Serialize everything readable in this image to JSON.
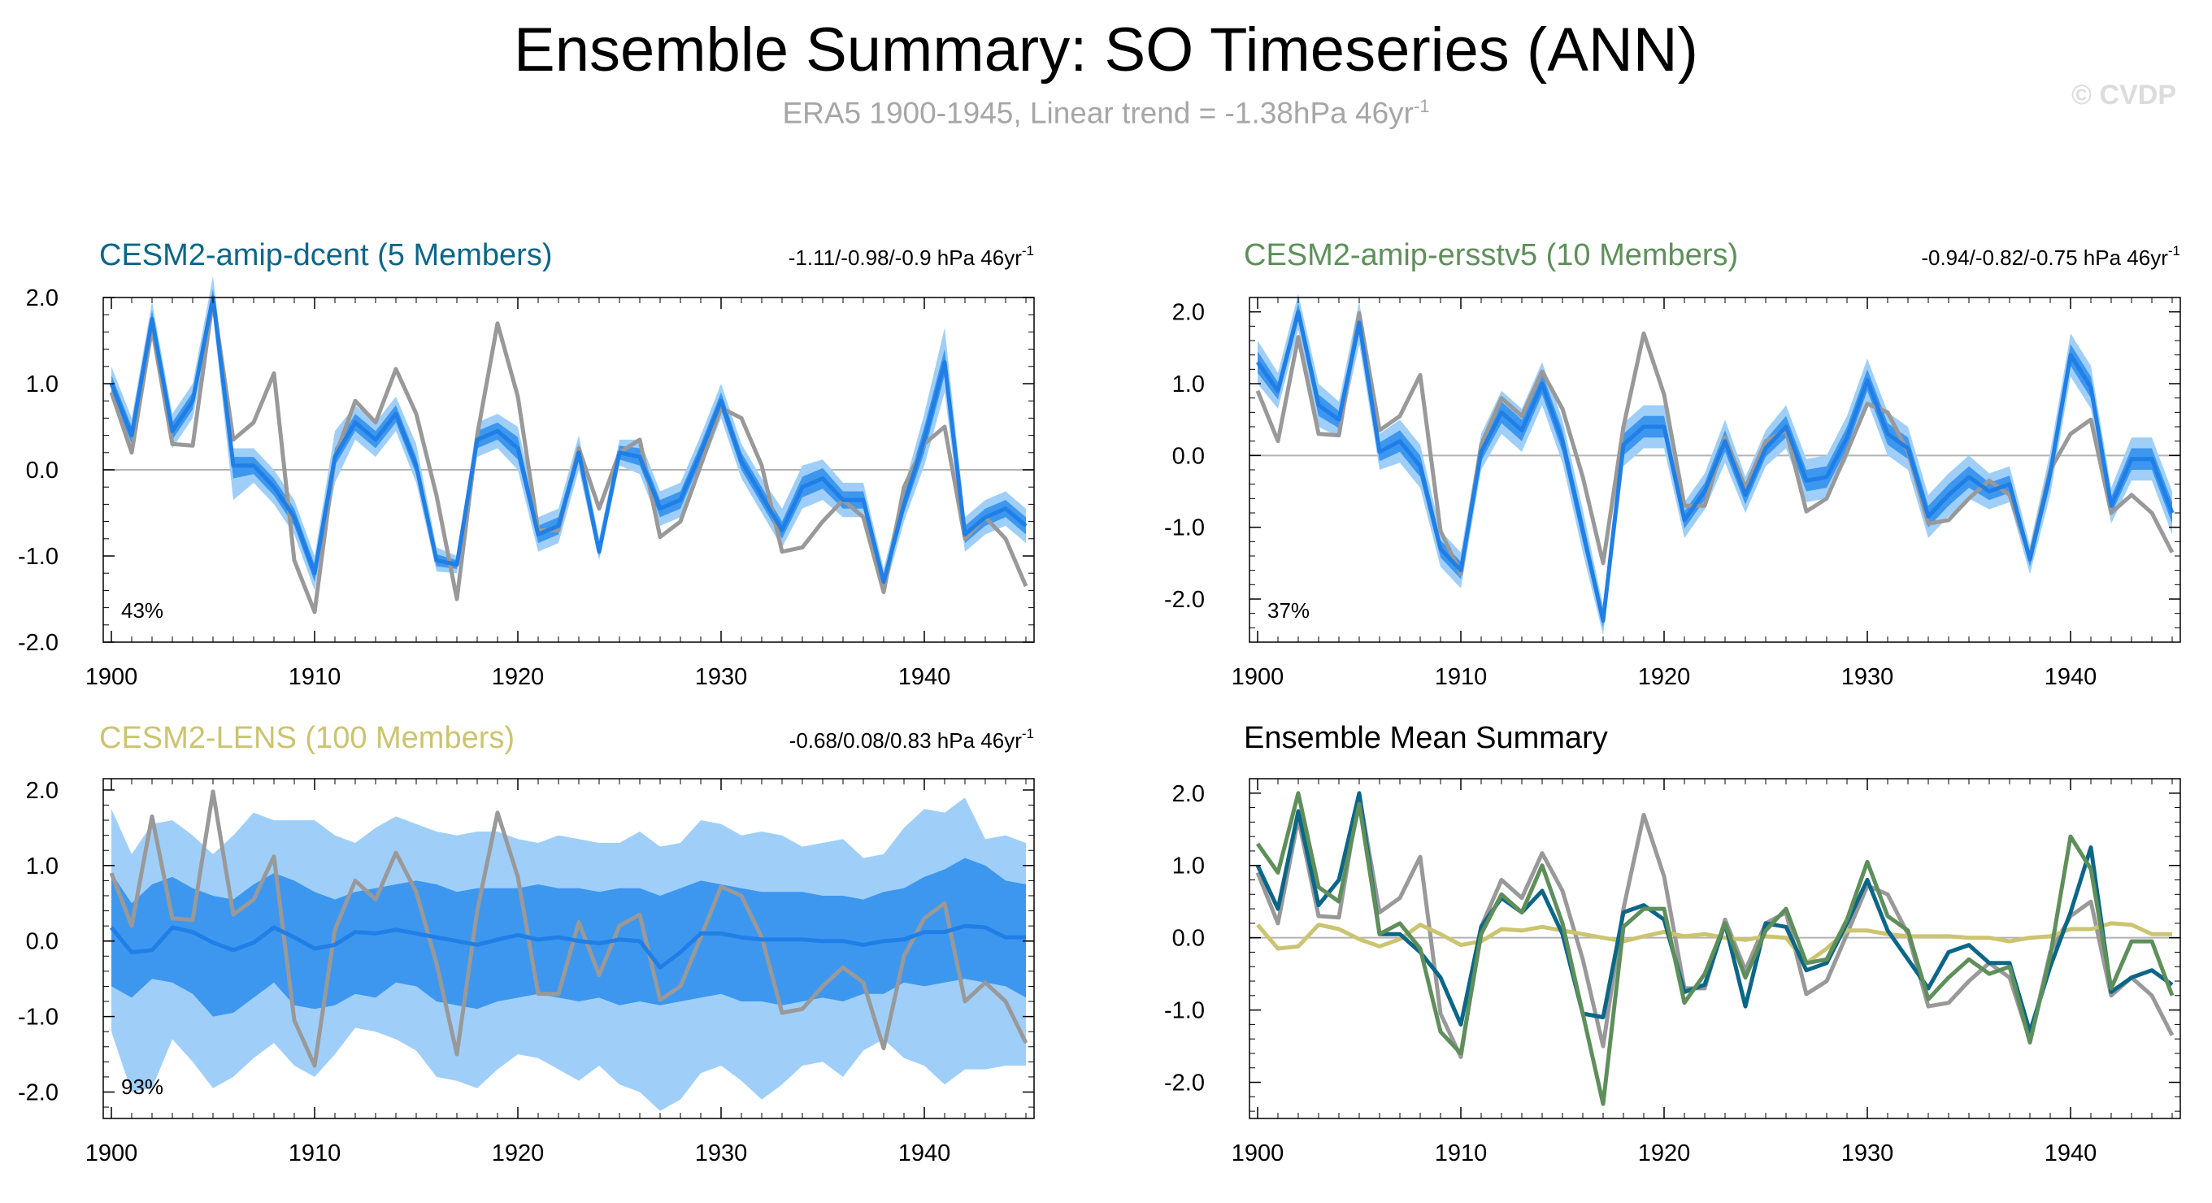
{
  "title": "Ensemble Summary: SO Timeseries (ANN)",
  "subtitle": "ERA5 1900-1945, Linear trend = -1.38hPa 46yr",
  "subtitle_sup": "-1",
  "watermark": "© CVDP",
  "colors": {
    "obs": "#999999",
    "band_outer": "#9fcff9",
    "band_inner": "#3d97ef",
    "ens_line": "#1f7fe6",
    "dcent": "#0b6688",
    "ersstv5": "#5e8f5a",
    "lens": "#cbc470",
    "zero": "#b3b3b3"
  },
  "years": [
    1900,
    1901,
    1902,
    1903,
    1904,
    1905,
    1906,
    1907,
    1908,
    1909,
    1910,
    1911,
    1912,
    1913,
    1914,
    1915,
    1916,
    1917,
    1918,
    1919,
    1920,
    1921,
    1922,
    1923,
    1924,
    1925,
    1926,
    1927,
    1928,
    1929,
    1930,
    1931,
    1932,
    1933,
    1934,
    1935,
    1936,
    1937,
    1938,
    1939,
    1940,
    1941,
    1942,
    1943,
    1944,
    1945
  ],
  "obs": [
    0.9,
    0.2,
    1.65,
    0.3,
    0.28,
    1.98,
    0.35,
    0.55,
    1.12,
    -1.05,
    -1.65,
    0.15,
    0.8,
    0.55,
    1.17,
    0.65,
    -0.3,
    -1.5,
    0.4,
    1.7,
    0.85,
    -0.7,
    -0.7,
    0.25,
    -0.45,
    0.2,
    0.35,
    -0.78,
    -0.6,
    0.05,
    0.72,
    0.6,
    0.05,
    -0.95,
    -0.9,
    -0.6,
    -0.35,
    -0.55,
    -1.42,
    -0.2,
    0.3,
    0.5,
    -0.8,
    -0.55,
    -0.8,
    -1.35
  ],
  "chart_data": [
    {
      "type": "line",
      "panel": "CESM2-amip-dcent",
      "title": "CESM2-amip-dcent (5 Members)",
      "trend_label": "-1.11/-0.98/-0.9 hPa 46yr",
      "percent_label": "43%",
      "ylim": [
        -2.0,
        2.0
      ],
      "y_ticks": [
        "2.0",
        "1.0",
        "0.0",
        "-1.0",
        "-2.0"
      ],
      "x_ticks": [
        "1900",
        "1910",
        "1920",
        "1930",
        "1940"
      ],
      "ens_mean": [
        1.0,
        0.4,
        1.75,
        0.45,
        0.8,
        2.0,
        0.05,
        0.05,
        -0.2,
        -0.55,
        -1.2,
        0.15,
        0.55,
        0.35,
        0.65,
        0.05,
        -1.05,
        -1.1,
        0.35,
        0.45,
        0.25,
        -0.75,
        -0.65,
        0.2,
        -0.95,
        0.2,
        0.15,
        -0.45,
        -0.35,
        0.2,
        0.8,
        0.1,
        -0.3,
        -0.7,
        -0.2,
        -0.1,
        -0.35,
        -0.35,
        -1.3,
        -0.4,
        0.35,
        1.25,
        -0.75,
        -0.55,
        -0.45,
        -0.65
      ],
      "band_inner_lo": [
        0.9,
        0.3,
        1.65,
        0.35,
        0.7,
        1.9,
        -0.1,
        -0.05,
        -0.3,
        -0.65,
        -1.3,
        0.05,
        0.45,
        0.25,
        0.55,
        -0.05,
        -1.12,
        -1.15,
        0.25,
        0.35,
        0.12,
        -0.85,
        -0.75,
        0.1,
        -1.0,
        0.12,
        0.05,
        -0.55,
        -0.45,
        0.1,
        0.7,
        0.0,
        -0.4,
        -0.8,
        -0.32,
        -0.22,
        -0.45,
        -0.45,
        -1.38,
        -0.5,
        0.2,
        1.1,
        -0.85,
        -0.65,
        -0.55,
        -0.75
      ],
      "band_inner_hi": [
        1.1,
        0.5,
        1.85,
        0.55,
        0.9,
        2.1,
        0.15,
        0.15,
        -0.1,
        -0.45,
        -1.1,
        0.25,
        0.65,
        0.45,
        0.75,
        0.15,
        -0.98,
        -1.05,
        0.45,
        0.55,
        0.38,
        -0.65,
        -0.55,
        0.3,
        -0.9,
        0.28,
        0.25,
        -0.35,
        -0.25,
        0.3,
        0.9,
        0.2,
        -0.2,
        -0.6,
        -0.08,
        0.02,
        -0.25,
        -0.25,
        -1.22,
        -0.3,
        0.5,
        1.4,
        -0.65,
        -0.45,
        -0.35,
        -0.55
      ],
      "band_outer_lo": [
        0.85,
        0.2,
        1.55,
        0.25,
        0.6,
        1.8,
        -0.35,
        -0.15,
        -0.4,
        -0.75,
        -1.4,
        -0.15,
        0.35,
        0.15,
        0.45,
        -0.15,
        -1.18,
        -1.2,
        0.15,
        0.25,
        0.0,
        -0.95,
        -0.85,
        0.0,
        -1.05,
        0.05,
        -0.05,
        -0.65,
        -0.55,
        0.0,
        0.6,
        -0.1,
        -0.5,
        -0.9,
        -0.45,
        -0.35,
        -0.55,
        -0.55,
        -1.45,
        -0.6,
        0.05,
        0.9,
        -0.95,
        -0.75,
        -0.65,
        -0.85
      ],
      "band_outer_hi": [
        1.2,
        0.6,
        1.95,
        0.65,
        1.0,
        2.25,
        0.25,
        0.25,
        0.0,
        -0.35,
        -1.0,
        0.45,
        0.75,
        0.55,
        0.85,
        0.3,
        -0.9,
        -1.0,
        0.55,
        0.65,
        0.5,
        -0.55,
        -0.45,
        0.4,
        -0.8,
        0.35,
        0.35,
        -0.25,
        -0.15,
        0.4,
        1.0,
        0.3,
        -0.1,
        -0.45,
        0.05,
        0.12,
        -0.15,
        -0.15,
        -1.15,
        -0.2,
        0.65,
        1.65,
        -0.55,
        -0.35,
        -0.25,
        -0.45
      ]
    },
    {
      "type": "line",
      "panel": "CESM2-amip-ersstv5",
      "title": "CESM2-amip-ersstv5 (10 Members)",
      "trend_label": "-0.94/-0.82/-0.75 hPa 46yr",
      "percent_label": "37%",
      "ylim": [
        -2.6,
        2.2
      ],
      "y_ticks": [
        "2.0",
        "1.0",
        "0.0",
        "-1.0",
        "-2.0"
      ],
      "x_ticks": [
        "1900",
        "1910",
        "1920",
        "1930",
        "1940"
      ],
      "ens_mean": [
        1.3,
        0.9,
        2.0,
        0.7,
        0.5,
        1.85,
        0.05,
        0.2,
        -0.15,
        -1.3,
        -1.6,
        0.05,
        0.6,
        0.35,
        1.0,
        0.2,
        -1.05,
        -2.3,
        0.15,
        0.4,
        0.4,
        -0.9,
        -0.5,
        0.2,
        -0.55,
        0.1,
        0.4,
        -0.35,
        -0.3,
        0.25,
        1.05,
        0.3,
        0.1,
        -0.85,
        -0.55,
        -0.3,
        -0.5,
        -0.4,
        -1.45,
        -0.25,
        1.4,
        0.95,
        -0.7,
        -0.05,
        -0.05,
        -0.8
      ],
      "band_inner_lo": [
        1.15,
        0.78,
        1.88,
        0.55,
        0.38,
        1.7,
        -0.08,
        0.05,
        -0.3,
        -1.42,
        -1.72,
        -0.08,
        0.45,
        0.2,
        0.85,
        0.05,
        -1.2,
        -2.4,
        0.0,
        0.25,
        0.25,
        -1.02,
        -0.62,
        0.05,
        -0.68,
        -0.02,
        0.25,
        -0.5,
        -0.45,
        0.1,
        0.9,
        0.15,
        -0.05,
        -1.0,
        -0.7,
        -0.45,
        -0.62,
        -0.52,
        -1.55,
        -0.4,
        1.25,
        0.8,
        -0.82,
        -0.2,
        -0.2,
        -0.95
      ],
      "band_inner_hi": [
        1.45,
        1.02,
        2.12,
        0.85,
        0.62,
        2.0,
        0.18,
        0.35,
        0.0,
        -1.18,
        -1.48,
        0.18,
        0.75,
        0.5,
        1.15,
        0.35,
        -0.9,
        -2.2,
        0.3,
        0.55,
        0.55,
        -0.78,
        -0.38,
        0.35,
        -0.42,
        0.22,
        0.55,
        -0.2,
        -0.15,
        0.4,
        1.2,
        0.45,
        0.25,
        -0.7,
        -0.4,
        -0.15,
        -0.38,
        -0.28,
        -1.35,
        -0.1,
        1.55,
        1.1,
        -0.58,
        0.1,
        0.1,
        -0.65
      ],
      "band_outer_lo": [
        1.0,
        0.65,
        1.75,
        0.4,
        0.25,
        1.55,
        -0.2,
        -0.1,
        -0.45,
        -1.55,
        -1.85,
        -0.2,
        0.3,
        0.05,
        0.7,
        -0.1,
        -1.35,
        -2.5,
        -0.15,
        0.1,
        0.1,
        -1.15,
        -0.75,
        -0.1,
        -0.8,
        -0.15,
        0.1,
        -0.65,
        -0.6,
        -0.05,
        0.75,
        0.0,
        -0.2,
        -1.15,
        -0.85,
        -0.6,
        -0.75,
        -0.65,
        -1.65,
        -0.55,
        1.1,
        0.65,
        -0.95,
        -0.35,
        -0.35,
        -1.1
      ],
      "band_outer_hi": [
        1.6,
        1.15,
        2.25,
        1.0,
        0.75,
        2.15,
        0.3,
        0.5,
        0.15,
        -1.05,
        -1.35,
        0.3,
        0.9,
        0.65,
        1.3,
        0.5,
        -0.75,
        -2.1,
        0.45,
        0.7,
        0.7,
        -0.65,
        -0.25,
        0.5,
        -0.3,
        0.35,
        0.7,
        -0.05,
        0.0,
        0.55,
        1.35,
        0.6,
        0.4,
        -0.55,
        -0.25,
        0.0,
        -0.25,
        -0.15,
        -1.25,
        0.05,
        1.7,
        1.25,
        -0.45,
        0.25,
        0.25,
        -0.5
      ]
    },
    {
      "type": "area",
      "panel": "CESM2-LENS",
      "title": "CESM2-LENS (100 Members)",
      "trend_label": "-0.68/0.08/0.83 hPa 46yr",
      "percent_label": "93%",
      "ylim": [
        -2.35,
        2.15
      ],
      "y_ticks": [
        "2.0",
        "1.0",
        "0.0",
        "-1.0",
        "-2.0"
      ],
      "x_ticks": [
        "1900",
        "1910",
        "1920",
        "1930",
        "1940"
      ],
      "ens_mean": [
        0.18,
        -0.15,
        -0.12,
        0.18,
        0.12,
        -0.02,
        -0.12,
        -0.02,
        0.18,
        0.05,
        -0.1,
        -0.05,
        0.12,
        0.1,
        0.15,
        0.1,
        0.05,
        0.0,
        -0.05,
        0.02,
        0.08,
        0.02,
        0.05,
        0.0,
        -0.03,
        0.02,
        0.0,
        -0.35,
        -0.15,
        0.1,
        0.1,
        0.05,
        0.02,
        0.02,
        0.02,
        0.0,
        0.0,
        -0.05,
        0.0,
        0.02,
        0.12,
        0.12,
        0.2,
        0.18,
        0.05,
        0.05
      ],
      "band_inner_lo": [
        -0.6,
        -0.75,
        -0.5,
        -0.55,
        -0.7,
        -1.0,
        -0.95,
        -0.75,
        -0.55,
        -0.85,
        -0.9,
        -0.85,
        -0.7,
        -0.75,
        -0.55,
        -0.6,
        -0.8,
        -0.85,
        -0.9,
        -0.8,
        -0.75,
        -0.7,
        -0.75,
        -0.8,
        -0.75,
        -0.85,
        -0.8,
        -0.85,
        -0.8,
        -0.75,
        -0.7,
        -0.8,
        -0.8,
        -0.85,
        -0.8,
        -0.75,
        -0.8,
        -0.7,
        -0.7,
        -0.55,
        -0.6,
        -0.55,
        -0.5,
        -0.55,
        -0.6,
        -0.75
      ],
      "band_inner_hi": [
        0.9,
        0.5,
        0.75,
        0.85,
        0.7,
        0.6,
        0.55,
        0.75,
        0.9,
        0.8,
        0.65,
        0.55,
        0.65,
        0.7,
        0.75,
        0.8,
        0.75,
        0.65,
        0.7,
        0.7,
        0.7,
        0.75,
        0.7,
        0.7,
        0.65,
        0.7,
        0.7,
        0.6,
        0.7,
        0.8,
        0.75,
        0.7,
        0.65,
        0.65,
        0.65,
        0.6,
        0.6,
        0.55,
        0.65,
        0.7,
        0.85,
        0.95,
        1.1,
        1.0,
        0.8,
        0.75
      ],
      "band_outer_lo": [
        -1.2,
        -2.0,
        -1.95,
        -1.3,
        -1.6,
        -1.95,
        -1.8,
        -1.55,
        -1.35,
        -1.65,
        -1.8,
        -1.5,
        -1.15,
        -1.2,
        -1.3,
        -1.45,
        -1.8,
        -1.85,
        -1.95,
        -1.7,
        -1.5,
        -1.55,
        -1.7,
        -1.85,
        -1.65,
        -1.9,
        -2.0,
        -2.25,
        -2.1,
        -1.75,
        -1.65,
        -1.85,
        -2.1,
        -1.9,
        -1.65,
        -1.6,
        -1.8,
        -1.45,
        -1.3,
        -1.55,
        -1.65,
        -1.9,
        -1.7,
        -1.7,
        -1.65,
        -1.65
      ],
      "band_outer_hi": [
        1.75,
        1.15,
        1.55,
        1.6,
        1.4,
        1.15,
        1.4,
        1.7,
        1.6,
        1.6,
        1.6,
        1.4,
        1.3,
        1.5,
        1.65,
        1.55,
        1.45,
        1.4,
        1.45,
        1.45,
        1.35,
        1.3,
        1.4,
        1.35,
        1.3,
        1.3,
        1.45,
        1.25,
        1.3,
        1.6,
        1.55,
        1.4,
        1.45,
        1.4,
        1.25,
        1.3,
        1.35,
        1.1,
        1.15,
        1.5,
        1.75,
        1.7,
        1.9,
        1.35,
        1.4,
        1.3
      ]
    },
    {
      "type": "line",
      "panel": "Ensemble Mean Summary",
      "title": "Ensemble Mean Summary",
      "ylim": [
        -2.5,
        2.2
      ],
      "y_ticks": [
        "2.0",
        "1.0",
        "0.0",
        "-1.0",
        "-2.0"
      ],
      "x_ticks": [
        "1900",
        "1910",
        "1920",
        "1930",
        "1940"
      ],
      "series": [
        {
          "ref": "dcent"
        },
        {
          "ref": "ersstv5"
        },
        {
          "ref": "lens"
        },
        {
          "ref": "obs"
        }
      ]
    }
  ]
}
